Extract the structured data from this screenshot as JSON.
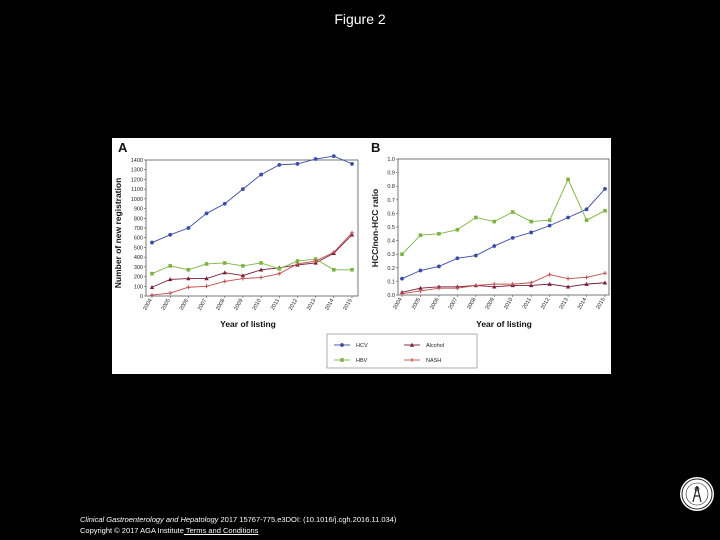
{
  "figure_title": "Figure 2",
  "caption": {
    "journal": "Clinical Gastroenterology and Hepatology",
    "citation": " 2017 15767-775.e3DOI: (10.1016/j.cgh.2016.11.034)",
    "copyright": "Copyright © 2017 AGA Institute",
    "link_text": " Terms and Conditions"
  },
  "colors": {
    "HCV": "#3a4ba8",
    "Alcohol": "#7a1e3c",
    "HBV": "#7cb342",
    "NASH": "#c0504d"
  },
  "legend": {
    "items": [
      {
        "name": "HCV",
        "marker": "circle"
      },
      {
        "name": "Alcohol",
        "marker": "triangle"
      },
      {
        "name": "HBV",
        "marker": "square"
      },
      {
        "name": "NASH",
        "marker": "plus"
      }
    ]
  },
  "chart_data": [
    {
      "panel": "A",
      "type": "line",
      "title": "",
      "xlabel": "Year of listing",
      "ylabel": "Number of new registration",
      "x": [
        "2004",
        "2005",
        "2006",
        "2007",
        "2008",
        "2009",
        "2010",
        "2011",
        "2012",
        "2013",
        "2014",
        "2015"
      ],
      "ylim": [
        0,
        1400
      ],
      "yticks": [
        0,
        100,
        200,
        300,
        400,
        500,
        600,
        700,
        800,
        900,
        1000,
        1100,
        1200,
        1300,
        1400
      ],
      "series": [
        {
          "name": "HCV",
          "values": [
            550,
            630,
            700,
            850,
            950,
            1100,
            1250,
            1350,
            1360,
            1410,
            1440,
            1360
          ]
        },
        {
          "name": "Alcohol",
          "values": [
            90,
            170,
            180,
            180,
            240,
            210,
            270,
            290,
            320,
            340,
            440,
            630
          ]
        },
        {
          "name": "HBV",
          "values": [
            230,
            310,
            270,
            330,
            340,
            310,
            340,
            280,
            360,
            380,
            270,
            270
          ]
        },
        {
          "name": "NASH",
          "values": [
            10,
            30,
            90,
            100,
            150,
            180,
            190,
            230,
            330,
            360,
            450,
            650
          ]
        }
      ]
    },
    {
      "panel": "B",
      "type": "line",
      "title": "",
      "xlabel": "Year of listing",
      "ylabel": "HCC/non-HCC ratio",
      "x": [
        "2004",
        "2005",
        "2006",
        "2007",
        "2008",
        "2009",
        "2010",
        "2011",
        "2012",
        "2013",
        "2014",
        "2015"
      ],
      "ylim": [
        0,
        1.0
      ],
      "yticks": [
        0,
        0.1,
        0.2,
        0.3,
        0.4,
        0.5,
        0.6,
        0.7,
        0.8,
        0.9,
        1.0
      ],
      "series": [
        {
          "name": "HCV",
          "values": [
            0.12,
            0.18,
            0.21,
            0.27,
            0.29,
            0.36,
            0.42,
            0.46,
            0.51,
            0.57,
            0.63,
            0.78
          ]
        },
        {
          "name": "Alcohol",
          "values": [
            0.02,
            0.05,
            0.06,
            0.06,
            0.07,
            0.06,
            0.07,
            0.07,
            0.08,
            0.06,
            0.08,
            0.09
          ]
        },
        {
          "name": "HBV",
          "values": [
            0.3,
            0.44,
            0.45,
            0.48,
            0.57,
            0.54,
            0.61,
            0.54,
            0.55,
            0.85,
            0.55,
            0.62
          ]
        },
        {
          "name": "NASH",
          "values": [
            0.01,
            0.03,
            0.05,
            0.05,
            0.07,
            0.08,
            0.08,
            0.09,
            0.15,
            0.12,
            0.13,
            0.16
          ]
        }
      ]
    }
  ]
}
